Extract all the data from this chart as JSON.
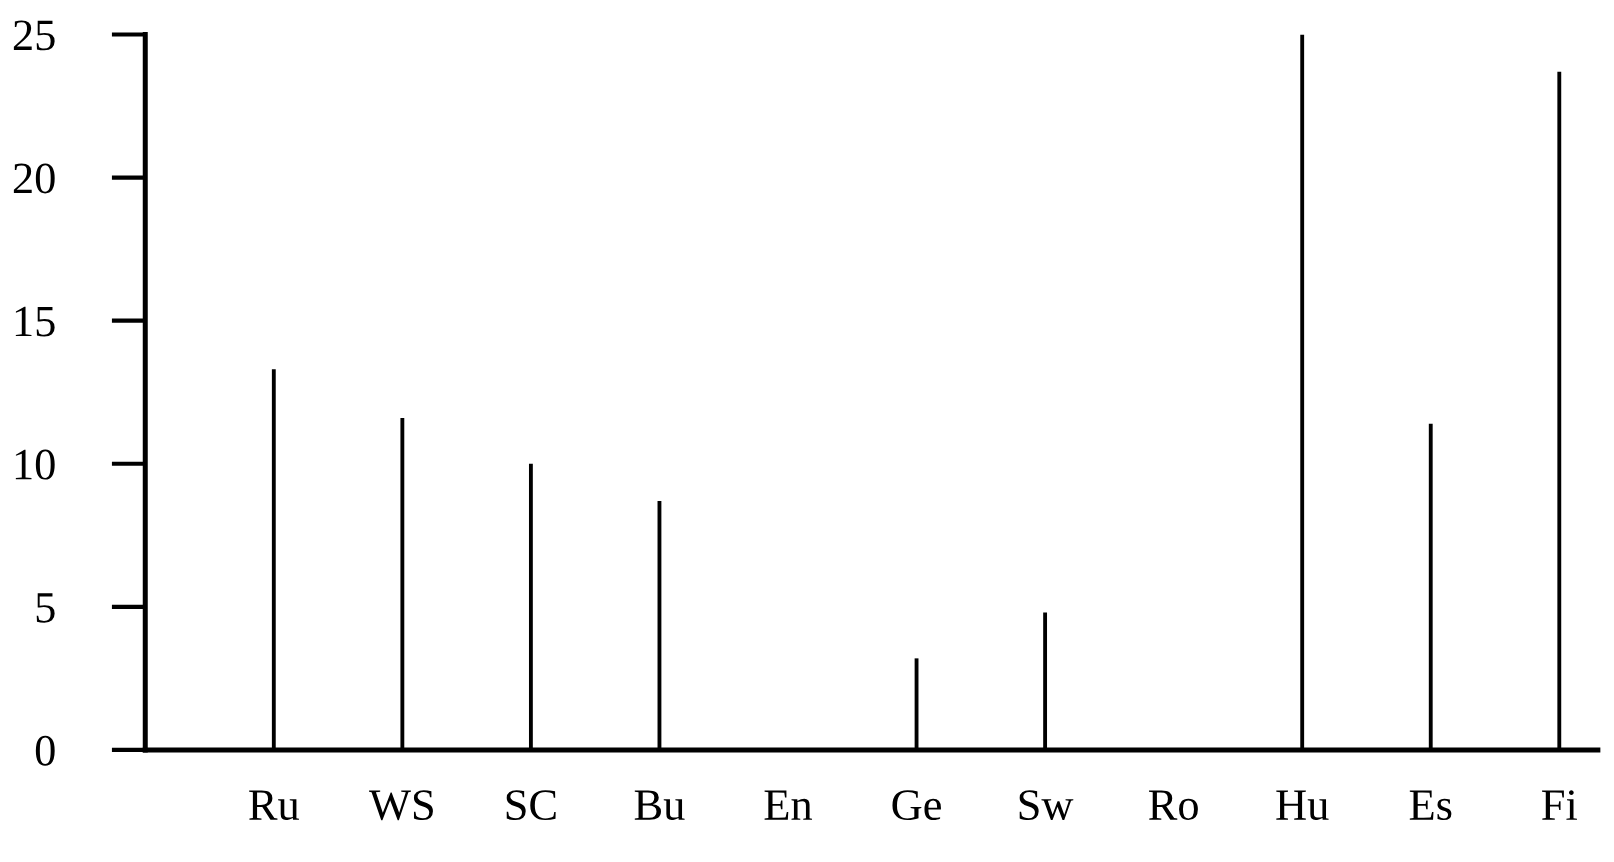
{
  "chart_data": {
    "type": "bar",
    "categories": [
      "Ru",
      "WS",
      "SC",
      "Bu",
      "En",
      "Ge",
      "Sw",
      "Ro",
      "Hu",
      "Es",
      "Fi"
    ],
    "values": [
      13.3,
      11.6,
      10,
      8.7,
      0,
      3.2,
      4.8,
      0,
      25,
      11.4,
      23.7
    ],
    "color": "#000000",
    "ylim": [
      0,
      25
    ],
    "yticks": [
      0,
      5,
      10,
      15,
      20,
      25
    ],
    "grid": false
  }
}
